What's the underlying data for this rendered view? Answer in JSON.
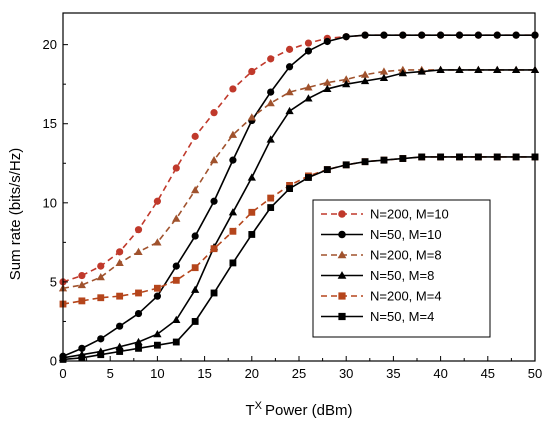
{
  "chart_data": {
    "type": "line",
    "xlabel": "Power (dBm)",
    "xlabel_prefix": "T",
    "xlabel_superscript": "X",
    "ylabel": "Sum rate (bits/s/Hz)",
    "xlim": [
      0,
      50
    ],
    "ylim": [
      0,
      22
    ],
    "xticks": [
      0,
      5,
      10,
      15,
      20,
      25,
      30,
      35,
      40,
      45,
      50
    ],
    "yticks": [
      0,
      5,
      10,
      15,
      20
    ],
    "grid": false,
    "legend_position": "center-right",
    "x": [
      0,
      2,
      4,
      6,
      8,
      10,
      12,
      14,
      16,
      18,
      20,
      22,
      24,
      26,
      28,
      30,
      32,
      34,
      36,
      38,
      40,
      42,
      44,
      46,
      48,
      50
    ],
    "series": [
      {
        "name": "N=200, M=10",
        "color": "#c0392b",
        "line_color": "#c0392b",
        "dashed": true,
        "marker": "circle",
        "values": [
          5.0,
          5.4,
          6.0,
          6.9,
          8.3,
          10.1,
          12.2,
          14.2,
          15.7,
          17.2,
          18.3,
          19.1,
          19.7,
          20.1,
          20.4,
          20.5,
          20.6,
          20.6,
          20.6,
          20.6,
          20.6,
          20.6,
          20.6,
          20.6,
          20.6,
          20.6
        ]
      },
      {
        "name": "N=50, M=10",
        "color": "#000000",
        "line_color": "#000000",
        "dashed": false,
        "marker": "circle",
        "values": [
          0.3,
          0.8,
          1.4,
          2.2,
          3.0,
          4.1,
          6.0,
          7.9,
          10.1,
          12.7,
          15.2,
          17.0,
          18.6,
          19.6,
          20.2,
          20.5,
          20.6,
          20.6,
          20.6,
          20.6,
          20.6,
          20.6,
          20.6,
          20.6,
          20.6,
          20.6
        ]
      },
      {
        "name": "N=200, M=8",
        "color": "#a0522d",
        "line_color": "#a0522d",
        "dashed": true,
        "marker": "triangle",
        "values": [
          4.6,
          4.8,
          5.3,
          6.2,
          6.9,
          7.5,
          9.0,
          10.8,
          12.7,
          14.3,
          15.4,
          16.3,
          17.0,
          17.3,
          17.6,
          17.8,
          18.1,
          18.3,
          18.4,
          18.4,
          18.4,
          18.4,
          18.4,
          18.4,
          18.4,
          18.4
        ]
      },
      {
        "name": "N=50, M=8",
        "color": "#000000",
        "line_color": "#000000",
        "dashed": false,
        "marker": "triangle",
        "values": [
          0.2,
          0.4,
          0.6,
          0.9,
          1.2,
          1.7,
          2.6,
          4.5,
          7.2,
          9.4,
          11.6,
          14.0,
          15.8,
          16.6,
          17.2,
          17.5,
          17.7,
          17.9,
          18.2,
          18.3,
          18.4,
          18.4,
          18.4,
          18.4,
          18.4,
          18.4
        ]
      },
      {
        "name": "N=200, M=4",
        "color": "#b5451b",
        "line_color": "#b5451b",
        "dashed": true,
        "marker": "square",
        "values": [
          3.6,
          3.8,
          4.0,
          4.1,
          4.3,
          4.6,
          5.1,
          5.9,
          7.1,
          8.2,
          9.4,
          10.3,
          11.1,
          11.7,
          12.1,
          12.4,
          12.6,
          12.7,
          12.8,
          12.9,
          12.9,
          12.9,
          12.9,
          12.9,
          12.9,
          12.9
        ]
      },
      {
        "name": "N=50, M=4",
        "color": "#000000",
        "line_color": "#000000",
        "dashed": false,
        "marker": "square",
        "values": [
          0.1,
          0.2,
          0.4,
          0.6,
          0.8,
          1.0,
          1.2,
          2.5,
          4.3,
          6.2,
          8.0,
          9.7,
          10.9,
          11.6,
          12.1,
          12.4,
          12.6,
          12.7,
          12.8,
          12.9,
          12.9,
          12.9,
          12.9,
          12.9,
          12.9,
          12.9
        ]
      }
    ]
  }
}
